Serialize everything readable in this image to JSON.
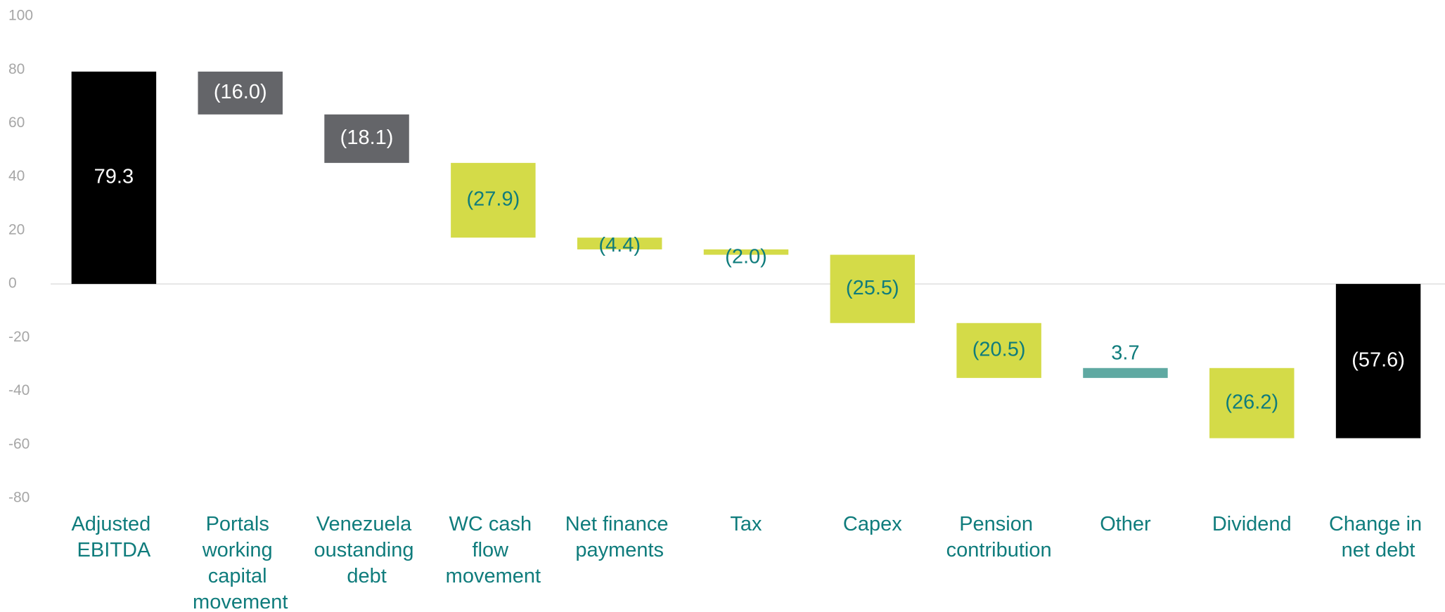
{
  "chart_data": {
    "type": "waterfall",
    "categories": [
      "Adjusted EBITDA",
      "Portals working capital movement",
      "Venezuela oustanding debt",
      "WC cash flow movement",
      "Net finance payments",
      "Tax",
      "Capex",
      "Pension contribution",
      "Other",
      "Dividend",
      "Change in net debt"
    ],
    "values": [
      79.3,
      -16.0,
      -18.1,
      -27.9,
      -4.4,
      -2.0,
      -25.5,
      -20.5,
      3.7,
      -26.2,
      -57.6
    ],
    "value_labels": [
      "79.3",
      "(16.0)",
      "(18.1)",
      "(27.9)",
      "(4.4)",
      "(2.0)",
      "(25.5)",
      "(20.5)",
      "3.7",
      "(26.2)",
      "(57.6)"
    ],
    "measures": [
      "absolute",
      "relative",
      "relative",
      "relative",
      "relative",
      "relative",
      "relative",
      "relative",
      "relative",
      "relative",
      "total"
    ],
    "colors": [
      "#000000",
      "#646569",
      "#646569",
      "#d4db48",
      "#d4db48",
      "#d4db48",
      "#d4db48",
      "#d4db48",
      "#5fa9a2",
      "#d4db48",
      "#000000"
    ],
    "label_colors": [
      "#ffffff",
      "#ffffff",
      "#ffffff",
      "#0f7c7c",
      "#0f7c7c",
      "#0f7c7c",
      "#0f7c7c",
      "#0f7c7c",
      "#0f7c7c",
      "#0f7c7c",
      "#ffffff"
    ],
    "ylim": [
      -80,
      100
    ],
    "yticks": [
      -80,
      -60,
      -40,
      -20,
      0,
      20,
      40,
      60,
      80,
      100
    ],
    "grid": false
  }
}
